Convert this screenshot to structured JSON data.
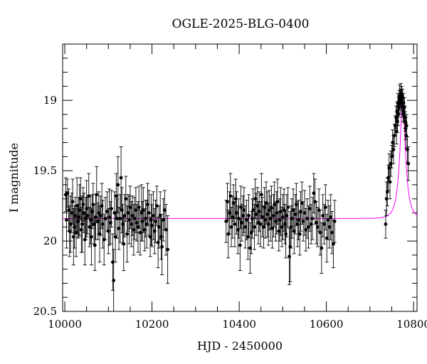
{
  "chart_data": {
    "type": "scatter",
    "title": "OGLE-2025-BLG-0400",
    "xlabel": "HJD - 2450000",
    "ylabel": "I magnitude",
    "xlim": [
      9995,
      10808
    ],
    "ylim": [
      18.6,
      20.5
    ],
    "y_inverted": true,
    "x_ticks": [
      10000,
      10200,
      10400,
      10600,
      10800
    ],
    "x_tick_labels": [
      "10000",
      "10200",
      "10400",
      "10600",
      "10800"
    ],
    "y_ticks": [
      19,
      19.5,
      20,
      20.5
    ],
    "y_tick_labels": [
      "19",
      "19.5",
      "20",
      "20.5"
    ],
    "grid": false,
    "series": [
      {
        "kind": "points_with_errorbars",
        "color": "#000000",
        "points": [
          [
            10002,
            19.67,
            0.12
          ],
          [
            10004,
            19.85,
            0.2
          ],
          [
            10006,
            19.66,
            0.1
          ],
          [
            10009,
            19.78,
            0.15
          ],
          [
            10011,
            19.93,
            0.18
          ],
          [
            10013,
            19.88,
            0.2
          ],
          [
            10016,
            19.8,
            0.14
          ],
          [
            10018,
            19.72,
            0.16
          ],
          [
            10020,
            19.97,
            0.2
          ],
          [
            10022,
            19.9,
            0.15
          ],
          [
            10024,
            19.82,
            0.13
          ],
          [
            10026,
            19.94,
            0.17
          ],
          [
            10028,
            19.75,
            0.2
          ],
          [
            10030,
            19.86,
            0.12
          ],
          [
            10032,
            19.83,
            0.14
          ],
          [
            10034,
            19.78,
            0.18
          ],
          [
            10036,
            19.7,
            0.15
          ],
          [
            10038,
            19.92,
            0.16
          ],
          [
            10040,
            19.88,
            0.2
          ],
          [
            10042,
            19.74,
            0.12
          ],
          [
            10044,
            19.8,
            0.14
          ],
          [
            10046,
            19.99,
            0.18
          ],
          [
            10048,
            19.84,
            0.15
          ],
          [
            10050,
            19.77,
            0.2
          ],
          [
            10052,
            19.82,
            0.13
          ],
          [
            10055,
            19.68,
            0.16
          ],
          [
            10057,
            19.9,
            0.14
          ],
          [
            10059,
            19.85,
            0.17
          ],
          [
            10061,
            19.97,
            0.2
          ],
          [
            10063,
            19.79,
            0.12
          ],
          [
            10065,
            19.74,
            0.15
          ],
          [
            10067,
            19.88,
            0.14
          ],
          [
            10069,
            20.03,
            0.18
          ],
          [
            10071,
            19.83,
            0.16
          ],
          [
            10073,
            19.67,
            0.2
          ],
          [
            10076,
            19.86,
            0.13
          ],
          [
            10078,
            19.8,
            0.15
          ],
          [
            10080,
            19.95,
            0.2
          ],
          [
            10082,
            19.82,
            0.14
          ],
          [
            10085,
            19.75,
            0.16
          ],
          [
            10087,
            19.88,
            0.17
          ],
          [
            10090,
            19.99,
            0.18
          ],
          [
            10093,
            19.84,
            0.15
          ],
          [
            10097,
            19.79,
            0.14
          ],
          [
            10100,
            19.93,
            0.16
          ],
          [
            10102,
            19.83,
            0.2
          ],
          [
            10105,
            19.87,
            0.15
          ],
          [
            10107,
            19.77,
            0.13
          ],
          [
            10110,
            20.15,
            0.2
          ],
          [
            10112,
            20.28,
            0.22
          ],
          [
            10114,
            19.8,
            0.15
          ],
          [
            10116,
            19.97,
            0.18
          ],
          [
            10118,
            19.68,
            0.16
          ],
          [
            10120,
            19.84,
            0.14
          ],
          [
            10122,
            19.6,
            0.2
          ],
          [
            10124,
            19.91,
            0.15
          ],
          [
            10127,
            19.84,
            0.17
          ],
          [
            10129,
            19.55,
            0.22
          ],
          [
            10131,
            19.78,
            0.16
          ],
          [
            10133,
            19.88,
            0.14
          ],
          [
            10135,
            20.02,
            0.19
          ],
          [
            10137,
            19.82,
            0.15
          ],
          [
            10140,
            19.7,
            0.16
          ],
          [
            10143,
            19.95,
            0.2
          ],
          [
            10145,
            19.8,
            0.13
          ],
          [
            10148,
            19.85,
            0.17
          ],
          [
            10150,
            19.76,
            0.15
          ],
          [
            10153,
            19.88,
            0.16
          ],
          [
            10155,
            19.82,
            0.14
          ],
          [
            10158,
            19.92,
            0.18
          ],
          [
            10160,
            19.84,
            0.15
          ],
          [
            10163,
            19.78,
            0.16
          ],
          [
            10165,
            19.87,
            0.13
          ],
          [
            10168,
            19.9,
            0.18
          ],
          [
            10170,
            19.76,
            0.15
          ],
          [
            10173,
            19.94,
            0.16
          ],
          [
            10176,
            19.8,
            0.2
          ],
          [
            10178,
            19.86,
            0.14
          ],
          [
            10180,
            19.78,
            0.16
          ],
          [
            10183,
            19.92,
            0.15
          ],
          [
            10185,
            19.84,
            0.13
          ],
          [
            10188,
            19.88,
            0.17
          ],
          [
            10190,
            19.74,
            0.15
          ],
          [
            10193,
            19.8,
            0.16
          ],
          [
            10196,
            19.97,
            0.14
          ],
          [
            10198,
            19.85,
            0.18
          ],
          [
            10200,
            19.89,
            0.15
          ],
          [
            10203,
            19.82,
            0.17
          ],
          [
            10206,
            19.93,
            0.16
          ],
          [
            10208,
            19.86,
            0.15
          ],
          [
            10211,
            19.75,
            0.14
          ],
          [
            10214,
            20.01,
            0.18
          ],
          [
            10216,
            19.9,
            0.15
          ],
          [
            10219,
            19.82,
            0.17
          ],
          [
            10221,
            19.97,
            0.16
          ],
          [
            10223,
            20.04,
            0.2
          ],
          [
            10226,
            19.85,
            0.15
          ],
          [
            10229,
            19.78,
            0.14
          ],
          [
            10232,
            19.92,
            0.18
          ],
          [
            10236,
            20.06,
            0.24
          ],
          [
            10370,
            19.86,
            0.15
          ],
          [
            10373,
            19.72,
            0.13
          ],
          [
            10375,
            19.95,
            0.17
          ],
          [
            10378,
            19.8,
            0.15
          ],
          [
            10380,
            19.68,
            0.16
          ],
          [
            10382,
            19.9,
            0.14
          ],
          [
            10385,
            19.83,
            0.15
          ],
          [
            10387,
            19.73,
            0.13
          ],
          [
            10390,
            19.88,
            0.16
          ],
          [
            10392,
            19.7,
            0.14
          ],
          [
            10394,
            19.8,
            0.15
          ],
          [
            10397,
            19.92,
            0.17
          ],
          [
            10399,
            19.84,
            0.14
          ],
          [
            10402,
            20.03,
            0.18
          ],
          [
            10404,
            19.76,
            0.15
          ],
          [
            10406,
            19.87,
            0.13
          ],
          [
            10409,
            19.82,
            0.14
          ],
          [
            10411,
            19.78,
            0.16
          ],
          [
            10414,
            19.9,
            0.15
          ],
          [
            10417,
            19.85,
            0.14
          ],
          [
            10420,
            19.97,
            0.16
          ],
          [
            10422,
            19.82,
            0.15
          ],
          [
            10425,
            20.05,
            0.18
          ],
          [
            10428,
            19.94,
            0.15
          ],
          [
            10430,
            19.84,
            0.14
          ],
          [
            10432,
            19.78,
            0.15
          ],
          [
            10435,
            19.9,
            0.16
          ],
          [
            10437,
            19.7,
            0.14
          ],
          [
            10439,
            19.81,
            0.15
          ],
          [
            10442,
            19.75,
            0.13
          ],
          [
            10444,
            19.87,
            0.15
          ],
          [
            10446,
            19.79,
            0.14
          ],
          [
            10449,
            19.88,
            0.16
          ],
          [
            10451,
            19.67,
            0.15
          ],
          [
            10453,
            19.83,
            0.14
          ],
          [
            10456,
            19.9,
            0.15
          ],
          [
            10458,
            19.76,
            0.14
          ],
          [
            10460,
            19.85,
            0.13
          ],
          [
            10462,
            19.73,
            0.15
          ],
          [
            10465,
            19.81,
            0.16
          ],
          [
            10467,
            19.88,
            0.15
          ],
          [
            10469,
            19.78,
            0.14
          ],
          [
            10472,
            19.84,
            0.16
          ],
          [
            10474,
            19.76,
            0.15
          ],
          [
            10476,
            19.91,
            0.14
          ],
          [
            10479,
            19.82,
            0.15
          ],
          [
            10481,
            19.74,
            0.16
          ],
          [
            10484,
            19.86,
            0.14
          ],
          [
            10486,
            19.8,
            0.15
          ],
          [
            10488,
            19.72,
            0.16
          ],
          [
            10491,
            19.93,
            0.14
          ],
          [
            10493,
            19.85,
            0.15
          ],
          [
            10495,
            19.79,
            0.17
          ],
          [
            10498,
            19.9,
            0.14
          ],
          [
            10500,
            19.83,
            0.16
          ],
          [
            10503,
            19.78,
            0.15
          ],
          [
            10505,
            19.88,
            0.14
          ],
          [
            10507,
            19.95,
            0.17
          ],
          [
            10509,
            19.82,
            0.15
          ],
          [
            10512,
            19.76,
            0.14
          ],
          [
            10515,
            20.11,
            0.2
          ],
          [
            10517,
            20.04,
            0.25
          ],
          [
            10519,
            19.9,
            0.15
          ],
          [
            10521,
            19.84,
            0.14
          ],
          [
            10524,
            19.78,
            0.15
          ],
          [
            10526,
            19.93,
            0.16
          ],
          [
            10529,
            19.81,
            0.14
          ],
          [
            10531,
            19.74,
            0.15
          ],
          [
            10534,
            19.88,
            0.16
          ],
          [
            10536,
            19.85,
            0.14
          ],
          [
            10539,
            19.95,
            0.15
          ],
          [
            10541,
            19.79,
            0.14
          ],
          [
            10544,
            19.73,
            0.15
          ],
          [
            10547,
            19.86,
            0.14
          ],
          [
            10550,
            19.8,
            0.16
          ],
          [
            10553,
            19.92,
            0.15
          ],
          [
            10556,
            19.84,
            0.14
          ],
          [
            10559,
            19.9,
            0.15
          ],
          [
            10562,
            19.77,
            0.16
          ],
          [
            10565,
            19.88,
            0.14
          ],
          [
            10568,
            19.84,
            0.15
          ],
          [
            10571,
            19.66,
            0.14
          ],
          [
            10574,
            19.72,
            0.16
          ],
          [
            10577,
            19.87,
            0.15
          ],
          [
            10580,
            19.9,
            0.14
          ],
          [
            10583,
            19.78,
            0.15
          ],
          [
            10586,
            19.94,
            0.16
          ],
          [
            10589,
            20.05,
            0.18
          ],
          [
            10592,
            19.82,
            0.15
          ],
          [
            10595,
            19.88,
            0.14
          ],
          [
            10598,
            19.76,
            0.16
          ],
          [
            10601,
            19.98,
            0.17
          ],
          [
            10604,
            19.85,
            0.14
          ],
          [
            10607,
            19.9,
            0.15
          ],
          [
            10610,
            19.83,
            0.16
          ],
          [
            10613,
            19.94,
            0.15
          ],
          [
            10616,
            20.02,
            0.17
          ],
          [
            10619,
            19.86,
            0.15
          ],
          [
            10736,
            19.88,
            0.1
          ],
          [
            10738,
            19.7,
            0.12
          ],
          [
            10740,
            19.65,
            0.1
          ],
          [
            10742,
            19.55,
            0.09
          ],
          [
            10744,
            19.48,
            0.1
          ],
          [
            10746,
            19.58,
            0.12
          ],
          [
            10748,
            19.45,
            0.09
          ],
          [
            10750,
            19.4,
            0.08
          ],
          [
            10752,
            19.3,
            0.09
          ],
          [
            10754,
            19.35,
            0.1
          ],
          [
            10756,
            19.25,
            0.08
          ],
          [
            10758,
            19.18,
            0.07
          ],
          [
            10760,
            19.12,
            0.08
          ],
          [
            10761,
            19.22,
            0.09
          ],
          [
            10762,
            19.08,
            0.07
          ],
          [
            10763,
            19.15,
            0.08
          ],
          [
            10764,
            19.02,
            0.07
          ],
          [
            10765,
            19.1,
            0.08
          ],
          [
            10766,
            19.05,
            0.07
          ],
          [
            10767,
            19.0,
            0.07
          ],
          [
            10768,
            18.97,
            0.08
          ],
          [
            10769,
            19.03,
            0.07
          ],
          [
            10770,
            18.98,
            0.06
          ],
          [
            10771,
            18.95,
            0.07
          ],
          [
            10772,
            19.0,
            0.07
          ],
          [
            10773,
            18.96,
            0.06
          ],
          [
            10774,
            19.05,
            0.07
          ],
          [
            10775,
            18.98,
            0.06
          ],
          [
            10776,
            19.08,
            0.07
          ],
          [
            10777,
            19.02,
            0.07
          ],
          [
            10778,
            19.1,
            0.06
          ],
          [
            10779,
            19.05,
            0.07
          ],
          [
            10780,
            19.12,
            0.08
          ],
          [
            10781,
            19.15,
            0.07
          ],
          [
            10782,
            19.2,
            0.08
          ],
          [
            10783,
            19.25,
            0.09
          ],
          [
            10784,
            19.18,
            0.08
          ],
          [
            10786,
            19.35,
            0.09
          ],
          [
            10788,
            19.45,
            0.12
          ]
        ]
      },
      {
        "kind": "model_curve",
        "color": "#ff00ff",
        "baseline": 19.84,
        "t0": 10775,
        "u0": 0.3,
        "tE": 15,
        "fs": 0.5
      }
    ]
  }
}
